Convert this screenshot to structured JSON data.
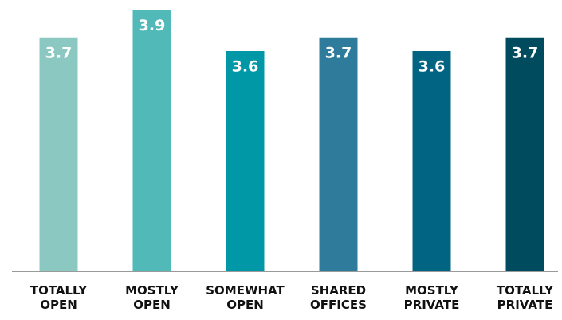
{
  "chart_data": {
    "type": "bar",
    "categories": [
      "TOTALLY OPEN",
      "MOSTLY OPEN",
      "SOMEWHAT OPEN",
      "SHARED OFFICES",
      "MOSTLY PRIVATE",
      "TOTALLY PRIVATE"
    ],
    "values": [
      3.7,
      3.9,
      3.6,
      3.7,
      3.6,
      3.7
    ],
    "colors": [
      "#8cc8c2",
      "#52b9b9",
      "#0098a6",
      "#2e7b9b",
      "#006482",
      "#004b5e"
    ],
    "ylim": [
      2,
      4
    ]
  }
}
